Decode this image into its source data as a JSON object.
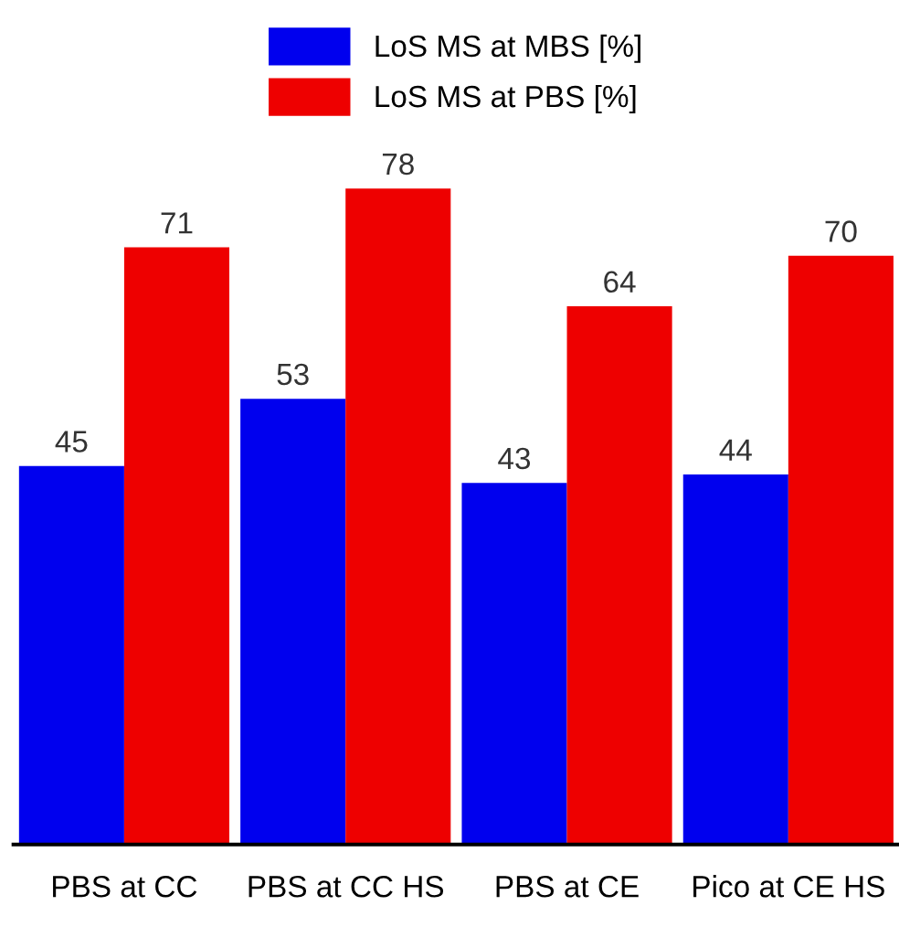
{
  "chart_data": {
    "type": "bar",
    "categories": [
      "PBS at CC",
      "PBS at CC HS",
      "PBS at CE",
      "Pico at CE HS"
    ],
    "series": [
      {
        "name": "LoS MS at MBS [%]",
        "color": "#0000ee",
        "values": [
          45,
          53,
          43,
          44
        ]
      },
      {
        "name": "LoS MS at PBS [%]",
        "color": "#ee0000",
        "values": [
          71,
          78,
          64,
          70
        ]
      }
    ],
    "data_labels": true,
    "legend": "top",
    "grid": false,
    "tick_labels": "x"
  }
}
